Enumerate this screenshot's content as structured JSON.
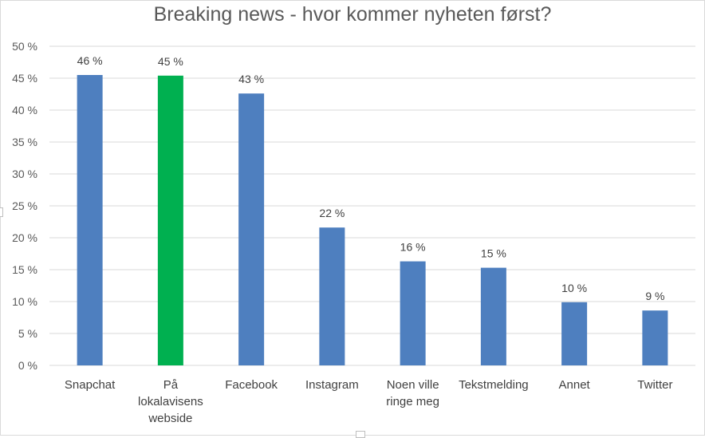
{
  "chart_data": {
    "type": "bar",
    "title": "Breaking news - hvor kommer nyheten først?",
    "categories": [
      [
        "Snapchat"
      ],
      [
        "På",
        "lokalavisens",
        "webside"
      ],
      [
        "Facebook"
      ],
      [
        "Instagram"
      ],
      [
        "Noen ville",
        "ringe meg"
      ],
      [
        "Tekstmelding"
      ],
      [
        "Annet"
      ],
      [
        "Twitter"
      ]
    ],
    "values": [
      45.5,
      45.4,
      42.6,
      21.6,
      16.3,
      15.3,
      9.9,
      8.6
    ],
    "data_labels": [
      "46 %",
      "45 %",
      "43 %",
      "22 %",
      "16 %",
      "15 %",
      "10 %",
      "9 %"
    ],
    "bar_colors": [
      "#4e7fbf",
      "#00b050",
      "#4e7fbf",
      "#4e7fbf",
      "#4e7fbf",
      "#4e7fbf",
      "#4e7fbf",
      "#4e7fbf"
    ],
    "ylim": [
      0,
      50
    ],
    "ytick_step": 5,
    "ytick_labels": [
      "0 %",
      "5 %",
      "10 %",
      "15 %",
      "20 %",
      "25 %",
      "30 %",
      "35 %",
      "40 %",
      "45 %",
      "50 %"
    ],
    "grid": true,
    "gridline_color": "#d9d9d9",
    "legend": "none"
  }
}
